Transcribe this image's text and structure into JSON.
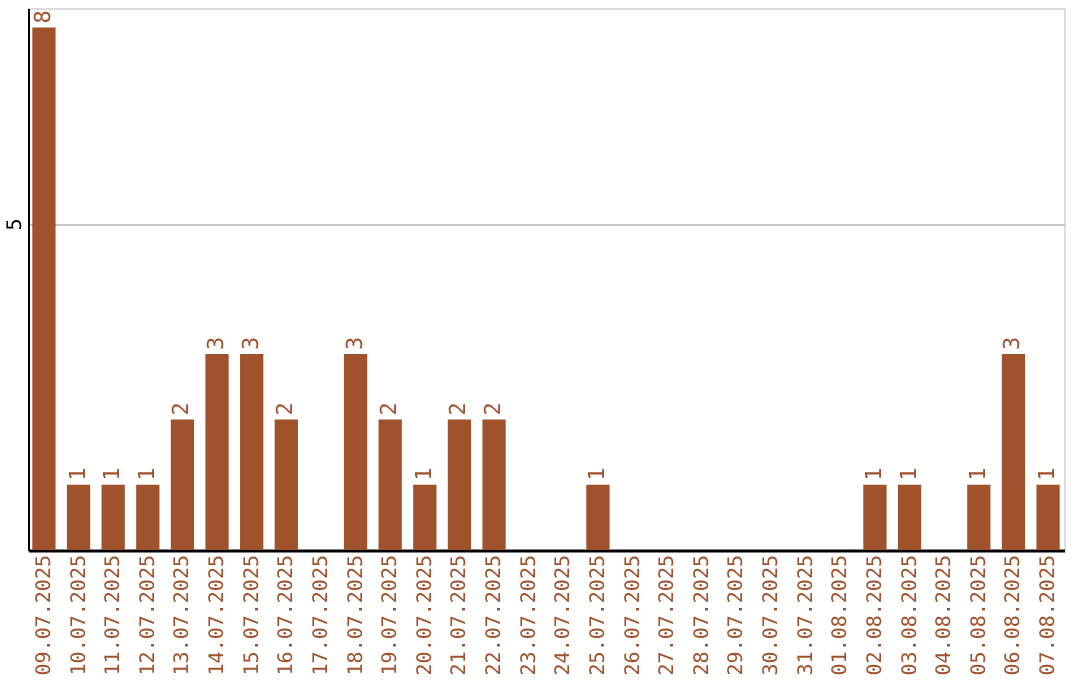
{
  "chart_data": {
    "type": "bar",
    "categories": [
      "09.07.2025",
      "10.07.2025",
      "11.07.2025",
      "12.07.2025",
      "13.07.2025",
      "14.07.2025",
      "15.07.2025",
      "16.07.2025",
      "17.07.2025",
      "18.07.2025",
      "19.07.2025",
      "20.07.2025",
      "21.07.2025",
      "22.07.2025",
      "23.07.2025",
      "24.07.2025",
      "25.07.2025",
      "26.07.2025",
      "27.07.2025",
      "28.07.2025",
      "29.07.2025",
      "30.07.2025",
      "31.07.2025",
      "01.08.2025",
      "02.08.2025",
      "03.08.2025",
      "04.08.2025",
      "05.08.2025",
      "06.08.2025",
      "07.08.2025"
    ],
    "values": [
      8,
      1,
      1,
      1,
      2,
      3,
      3,
      2,
      0,
      3,
      2,
      1,
      2,
      2,
      0,
      0,
      1,
      0,
      0,
      0,
      0,
      0,
      0,
      0,
      1,
      1,
      0,
      1,
      3,
      1
    ],
    "value_labels": [
      "8",
      "1",
      "1",
      "1",
      "2",
      "3",
      "3",
      "2",
      null,
      "3",
      "2",
      "1",
      "2",
      "2",
      null,
      null,
      "1",
      null,
      null,
      null,
      null,
      null,
      null,
      null,
      "1",
      "1",
      null,
      "1",
      "3",
      "1"
    ],
    "color": "#a0522d",
    "ylim": [
      0,
      8.3
    ],
    "yticks": [
      5
    ],
    "grid": "y"
  }
}
